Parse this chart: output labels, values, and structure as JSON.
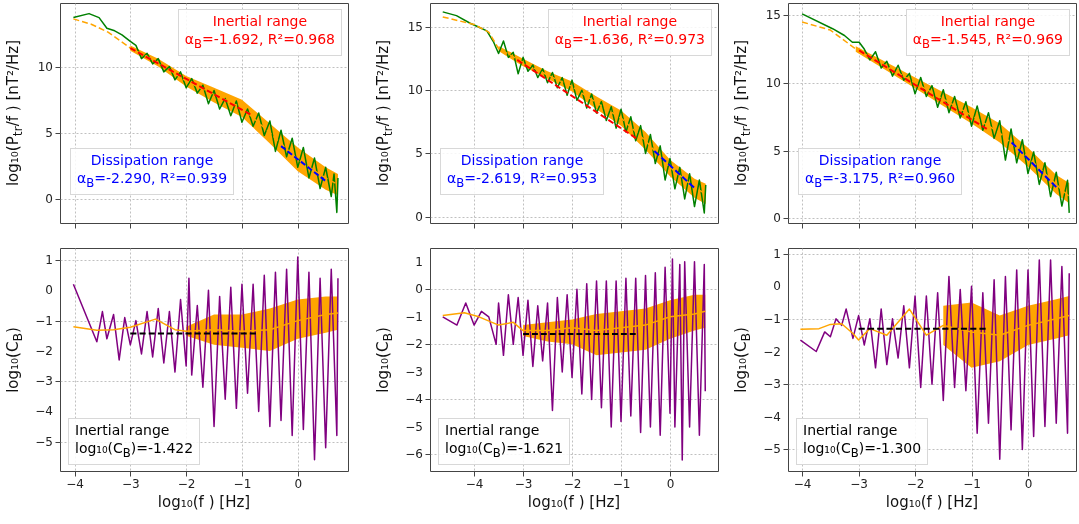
{
  "chart_data": [
    {
      "type": "line",
      "ylabel": "log₁₀(P$_{tr}$/f ) [nT²/Hz]",
      "xlim": [
        -4.26,
        0.9
      ],
      "ylim": [
        -1.8,
        14.8
      ],
      "xticks": [
        -4,
        -3,
        -2,
        -1,
        0
      ],
      "yticks": [
        0,
        5,
        10
      ],
      "tick_labels": "y",
      "grid": true,
      "marker": "none",
      "annotations": [
        "Inertial range",
        "α$_{B}$=-1.692, R²=0.968",
        "Dissipation range",
        "α$_{B}$=-2.290, R²=0.939"
      ],
      "series": [
        {
          "color": "#008000",
          "line_style": "solid",
          "x": [
            -4.02,
            -3.74,
            -3.56,
            -3.42,
            -3.28,
            -3.15,
            -3.0,
            -2.9,
            -2.8,
            -2.7,
            -2.6,
            -2.5,
            -2.4,
            -2.3,
            -2.2,
            -2.1,
            -2.0,
            -1.9,
            -1.8,
            -1.7,
            -1.6,
            -1.5,
            -1.4,
            -1.3,
            -1.2,
            -1.1,
            -1.0,
            -0.9,
            -0.8,
            -0.7,
            -0.6,
            -0.5,
            -0.4,
            -0.3,
            -0.2,
            -0.1,
            0.0,
            0.1,
            0.2,
            0.3,
            0.4,
            0.5,
            0.6,
            0.65,
            0.7,
            0.72
          ],
          "values": [
            13.7,
            14.0,
            13.7,
            12.9,
            12.7,
            12.4,
            11.9,
            11.6,
            10.6,
            11.0,
            10.2,
            10.6,
            9.6,
            10.0,
            9.0,
            9.6,
            8.4,
            9.1,
            8.0,
            8.6,
            7.2,
            8.2,
            6.8,
            7.6,
            6.3,
            7.4,
            5.8,
            6.8,
            5.5,
            6.5,
            4.8,
            5.9,
            3.6,
            5.2,
            3.2,
            4.6,
            2.4,
            3.9,
            1.6,
            3.1,
            0.8,
            2.4,
            0.2,
            1.9,
            -1.0,
            1.6
          ]
        },
        {
          "color": "#ffa500",
          "line_style": "dashed",
          "x": [
            -4.02,
            -3.7,
            -3.4,
            -3.0,
            -2.5,
            -2.0,
            -1.5,
            -1.0,
            -0.5,
            0.0,
            0.5,
            0.72
          ],
          "values": [
            13.6,
            13.2,
            12.6,
            11.4,
            10.3,
            8.9,
            7.9,
            6.9,
            5.0,
            3.0,
            1.6,
            1.1
          ],
          "lower": [
            null,
            null,
            null,
            11.2,
            10.0,
            8.5,
            7.3,
            6.2,
            4.2,
            2.1,
            0.7,
            0.3
          ],
          "upper": [
            null,
            null,
            null,
            11.6,
            10.6,
            9.3,
            8.4,
            7.5,
            5.7,
            3.9,
            2.4,
            1.9
          ]
        },
        {
          "color": "#ff0000",
          "line_style": "dashed",
          "x": [
            -3.0,
            -0.85
          ],
          "values": [
            11.4,
            6.4
          ]
        },
        {
          "color": "#0000ff",
          "line_style": "dashed",
          "x": [
            -0.3,
            0.49
          ],
          "values": [
            4.0,
            1.4
          ]
        }
      ]
    },
    {
      "type": "line",
      "ylabel": "log₁₀(P$_{tr}$/f ) [nT²/Hz]",
      "xlim": [
        -4.9,
        0.98
      ],
      "ylim": [
        -0.5,
        16.9
      ],
      "xticks": [
        -4,
        -3,
        -2,
        -1,
        0
      ],
      "yticks": [
        0,
        5,
        10,
        15
      ],
      "tick_labels": "y",
      "grid": true,
      "marker": "none",
      "annotations": [
        "Inertial range",
        "α$_{B}$=-1.636, R²=0.973",
        "Dissipation range",
        "α$_{B}$=-2.619, R²=0.953"
      ],
      "series": [
        {
          "color": "#008000",
          "line_style": "solid",
          "x": [
            -4.64,
            -4.36,
            -4.08,
            -3.91,
            -3.74,
            -3.6,
            -3.5,
            -3.4,
            -3.3,
            -3.2,
            -3.1,
            -3.0,
            -2.9,
            -2.8,
            -2.7,
            -2.6,
            -2.5,
            -2.4,
            -2.3,
            -2.2,
            -2.1,
            -2.0,
            -1.9,
            -1.8,
            -1.7,
            -1.6,
            -1.5,
            -1.4,
            -1.3,
            -1.2,
            -1.1,
            -1.0,
            -0.9,
            -0.8,
            -0.7,
            -0.6,
            -0.5,
            -0.4,
            -0.3,
            -0.2,
            -0.1,
            0.0,
            0.1,
            0.2,
            0.3,
            0.4,
            0.5,
            0.6,
            0.7,
            0.73
          ],
          "values": [
            16.2,
            15.9,
            15.3,
            15.0,
            14.7,
            13.8,
            12.9,
            13.9,
            12.6,
            13.0,
            11.3,
            12.6,
            11.5,
            12.0,
            11.0,
            11.7,
            10.6,
            11.4,
            10.2,
            11.0,
            9.6,
            10.8,
            9.2,
            10.0,
            8.6,
            9.7,
            8.2,
            9.1,
            7.6,
            8.7,
            7.0,
            8.5,
            6.7,
            7.9,
            6.0,
            7.2,
            5.0,
            6.5,
            4.2,
            5.6,
            2.9,
            4.6,
            2.2,
            3.9,
            1.4,
            3.4,
            0.8,
            2.9,
            0.3,
            2.5
          ]
        },
        {
          "color": "#ffa500",
          "line_style": "dashed",
          "x": [
            -4.64,
            -4.0,
            -3.7,
            -3.5,
            -3.0,
            -2.5,
            -2.0,
            -1.5,
            -1.0,
            -0.5,
            0.0,
            0.5,
            0.73
          ],
          "values": [
            15.8,
            15.2,
            14.6,
            13.3,
            12.2,
            11.2,
            10.3,
            9.0,
            7.8,
            6.0,
            3.9,
            2.3,
            1.8
          ],
          "lower": [
            null,
            null,
            null,
            13.1,
            11.9,
            10.9,
            9.9,
            8.5,
            7.2,
            5.3,
            3.2,
            1.5,
            1.0
          ],
          "upper": [
            null,
            null,
            null,
            13.5,
            12.5,
            11.5,
            10.7,
            9.5,
            8.4,
            6.7,
            4.5,
            3.0,
            2.6
          ]
        },
        {
          "color": "#ff0000",
          "line_style": "dashed",
          "x": [
            -3.12,
            -0.69
          ],
          "values": [
            12.4,
            6.2
          ]
        },
        {
          "color": "#0000ff",
          "line_style": "dashed",
          "x": [
            -0.32,
            0.49
          ],
          "values": [
            5.2,
            2.3
          ]
        }
      ]
    },
    {
      "type": "line",
      "ylabel": "log₁₀(P$_{tr}$/f ) [nT²/Hz]",
      "xlim": [
        -4.25,
        0.85
      ],
      "ylim": [
        -0.35,
        15.9
      ],
      "xticks": [
        -4,
        -3,
        -2,
        -1,
        0
      ],
      "yticks": [
        0,
        5,
        10,
        15
      ],
      "tick_labels": "y",
      "grid": true,
      "marker": "none",
      "annotations": [
        "Inertial range",
        "α$_{B}$=-1.545, R²=0.969",
        "Dissipation range",
        "α$_{B}$=-3.175, R²=0.960"
      ],
      "series": [
        {
          "color": "#008000",
          "line_style": "solid",
          "x": [
            -4.0,
            -3.46,
            -3.25,
            -3.11,
            -2.99,
            -2.9,
            -2.8,
            -2.7,
            -2.6,
            -2.5,
            -2.4,
            -2.3,
            -2.2,
            -2.1,
            -2.0,
            -1.9,
            -1.8,
            -1.7,
            -1.6,
            -1.5,
            -1.4,
            -1.3,
            -1.2,
            -1.1,
            -1.0,
            -0.9,
            -0.8,
            -0.7,
            -0.6,
            -0.5,
            -0.4,
            -0.3,
            -0.2,
            -0.1,
            0.0,
            0.1,
            0.2,
            0.3,
            0.4,
            0.5,
            0.6,
            0.7,
            0.73
          ],
          "values": [
            15.1,
            14.0,
            13.5,
            13.0,
            13.0,
            12.5,
            11.7,
            12.3,
            11.1,
            11.6,
            10.5,
            11.3,
            10.2,
            10.7,
            9.2,
            10.4,
            9.0,
            9.8,
            8.2,
            9.5,
            7.8,
            9.0,
            7.4,
            8.6,
            6.8,
            8.3,
            6.5,
            7.8,
            5.9,
            7.2,
            4.3,
            6.6,
            4.1,
            5.8,
            3.3,
            4.9,
            2.5,
            4.1,
            1.6,
            3.4,
            0.9,
            2.8,
            0.4
          ]
        },
        {
          "color": "#ffa500",
          "line_style": "dashed",
          "x": [
            -4.0,
            -3.5,
            -3.05,
            -2.5,
            -2.0,
            -1.5,
            -1.0,
            -0.5,
            0.0,
            0.5,
            0.73
          ],
          "values": [
            14.5,
            13.9,
            12.5,
            11.2,
            10.0,
            8.8,
            7.6,
            6.3,
            4.5,
            2.5,
            1.6
          ],
          "lower": [
            null,
            null,
            12.3,
            10.9,
            9.6,
            8.3,
            7.0,
            5.6,
            3.8,
            1.8,
            1.1
          ],
          "upper": [
            null,
            null,
            12.7,
            11.5,
            10.4,
            9.3,
            8.2,
            7.0,
            5.2,
            3.2,
            2.6
          ]
        },
        {
          "color": "#ff0000",
          "line_style": "dashed",
          "x": [
            -2.99,
            -0.73
          ],
          "values": [
            12.4,
            6.6
          ]
        },
        {
          "color": "#0000ff",
          "line_style": "dashed",
          "x": [
            -0.29,
            0.5
          ],
          "values": [
            5.6,
            2.3
          ]
        }
      ]
    },
    {
      "type": "line",
      "xlabel": "log₁₀(f ) [Hz]",
      "ylabel": "log₁₀(C$_{B}$)",
      "xlim": [
        -4.26,
        0.9
      ],
      "ylim": [
        -5.97,
        1.4
      ],
      "xticks": [
        -4,
        -3,
        -2,
        -1,
        0
      ],
      "yticks": [
        -5,
        -4,
        -3,
        -2,
        -1,
        0,
        1
      ],
      "grid": true,
      "marker": "none",
      "annotations": [
        "Inertial range",
        "log₁₀(C$_{B}$)=-1.422"
      ],
      "series": [
        {
          "color": "#800080",
          "line_style": "solid",
          "x": [
            -4.02,
            -3.6,
            -3.5,
            -3.42,
            -3.3,
            -3.2,
            -3.1,
            -3.0,
            -2.9,
            -2.8,
            -2.7,
            -2.6,
            -2.5,
            -2.4,
            -2.3,
            -2.2,
            -2.1,
            -2.0,
            -1.95,
            -1.9,
            -1.8,
            -1.7,
            -1.6,
            -1.5,
            -1.4,
            -1.3,
            -1.2,
            -1.1,
            -1.0,
            -0.9,
            -0.8,
            -0.7,
            -0.6,
            -0.5,
            -0.4,
            -0.3,
            -0.2,
            -0.1,
            0.0,
            0.1,
            0.2,
            0.3,
            0.4,
            0.5,
            0.6,
            0.7,
            0.72
          ],
          "values": [
            0.2,
            -1.7,
            -0.7,
            -1.6,
            -0.8,
            -2.3,
            -0.9,
            -1.8,
            -1.0,
            -2.1,
            -0.7,
            -2.2,
            -0.6,
            -2.4,
            -0.7,
            -2.7,
            -0.3,
            -2.5,
            0.4,
            -2.8,
            -0.5,
            -3.2,
            0.0,
            -4.5,
            -0.2,
            -3.6,
            0.1,
            -3.9,
            0.2,
            -3.4,
            0.2,
            -4.0,
            0.5,
            -4.5,
            0.6,
            -4.3,
            0.7,
            -4.8,
            1.1,
            -4.6,
            0.6,
            -5.6,
            0.4,
            -5.2,
            0.7,
            -4.8,
            0.4
          ]
        },
        {
          "color": "#ffa500",
          "line_style": "solid",
          "x": [
            -4.02,
            -3.6,
            -3.3,
            -3.0,
            -2.55,
            -2.2,
            -2.0,
            -1.5,
            -1.0,
            -0.5,
            0.0,
            0.5,
            0.72
          ],
          "values": [
            -1.2,
            -1.32,
            -1.3,
            -1.22,
            -0.95,
            -1.3,
            -1.35,
            -1.3,
            -1.35,
            -1.3,
            -1.0,
            -0.8,
            -0.75
          ],
          "lower": [
            null,
            null,
            null,
            null,
            null,
            null,
            -1.5,
            -1.8,
            -1.9,
            -2.0,
            -1.6,
            -1.4,
            -1.3
          ],
          "upper": [
            null,
            null,
            null,
            null,
            null,
            null,
            -1.2,
            -0.8,
            -0.8,
            -0.6,
            -0.3,
            -0.2,
            -0.2
          ]
        },
        {
          "color": "#000000",
          "line_style": "dashed",
          "x": [
            -3.0,
            -0.75
          ],
          "values": [
            -1.422,
            -1.422
          ]
        }
      ]
    },
    {
      "type": "line",
      "xlabel": "log₁₀(f ) [Hz]",
      "ylabel": "log₁₀(C$_{B}$)",
      "xlim": [
        -4.9,
        0.98
      ],
      "ylim": [
        -6.6,
        1.5
      ],
      "xticks": [
        -4,
        -3,
        -2,
        -1,
        0
      ],
      "yticks": [
        -6,
        -5,
        -4,
        -3,
        -2,
        -1,
        0,
        1
      ],
      "grid": true,
      "marker": "none",
      "annotations": [
        "Inertial range",
        "log₁₀(C$_{B}$)=-1.621"
      ],
      "series": [
        {
          "color": "#800080",
          "line_style": "solid",
          "x": [
            -4.64,
            -4.35,
            -4.17,
            -4.0,
            -3.85,
            -3.7,
            -3.55,
            -3.5,
            -3.4,
            -3.3,
            -3.2,
            -3.1,
            -3.0,
            -2.9,
            -2.8,
            -2.7,
            -2.6,
            -2.5,
            -2.4,
            -2.3,
            -2.2,
            -2.1,
            -2.0,
            -1.9,
            -1.8,
            -1.7,
            -1.6,
            -1.5,
            -1.4,
            -1.3,
            -1.2,
            -1.1,
            -1.0,
            -0.9,
            -0.8,
            -0.7,
            -0.6,
            -0.5,
            -0.4,
            -0.3,
            -0.2,
            -0.1,
            0.0,
            0.05,
            0.1,
            0.2,
            0.25,
            0.3,
            0.4,
            0.5,
            0.6,
            0.7,
            0.72
          ],
          "values": [
            -1.0,
            -1.3,
            -0.5,
            -1.3,
            -0.8,
            -1.0,
            -2.0,
            -0.5,
            -2.4,
            -0.2,
            -2.0,
            -0.3,
            -2.4,
            -0.4,
            -2.8,
            -0.6,
            -2.6,
            -0.5,
            -4.4,
            -0.3,
            -3.0,
            -0.2,
            -3.2,
            0.0,
            -3.8,
            0.2,
            -4.0,
            0.3,
            -4.3,
            0.3,
            -5.0,
            0.3,
            -4.8,
            0.4,
            -4.6,
            0.4,
            -5.2,
            0.5,
            -5.0,
            0.6,
            -5.3,
            0.8,
            -4.5,
            1.1,
            -5.0,
            0.9,
            -6.2,
            1.0,
            -5.0,
            1.0,
            -5.3,
            0.9,
            -3.7
          ]
        },
        {
          "color": "#ffa500",
          "line_style": "solid",
          "x": [
            -4.64,
            -4.2,
            -3.9,
            -3.5,
            -3.2,
            -3.0,
            -2.5,
            -2.0,
            -1.5,
            -1.0,
            -0.5,
            0.0,
            0.5,
            0.72
          ],
          "values": [
            -0.95,
            -0.85,
            -1.0,
            -1.3,
            -1.2,
            -1.5,
            -1.5,
            -1.4,
            -1.5,
            -1.4,
            -1.3,
            -1.0,
            -0.9,
            -0.8
          ],
          "lower": [
            null,
            null,
            null,
            null,
            null,
            -1.7,
            -1.9,
            -2.0,
            -2.4,
            -2.3,
            -2.2,
            -1.8,
            -1.5,
            -1.4
          ],
          "upper": [
            null,
            null,
            null,
            null,
            null,
            -1.3,
            -1.2,
            -1.1,
            -0.9,
            -0.8,
            -0.7,
            -0.4,
            -0.2,
            -0.2
          ]
        },
        {
          "color": "#000000",
          "line_style": "dashed",
          "x": [
            -3.0,
            -0.7
          ],
          "values": [
            -1.621,
            -1.621
          ]
        }
      ]
    },
    {
      "type": "line",
      "xlabel": "log₁₀(f ) [Hz]",
      "ylabel": "log₁₀(C$_{B}$)",
      "xlim": [
        -4.25,
        0.85
      ],
      "ylim": [
        -5.66,
        1.17
      ],
      "xticks": [
        -4,
        -3,
        -2,
        -1,
        0
      ],
      "yticks": [
        -5,
        -4,
        -3,
        -2,
        -1,
        0,
        1
      ],
      "grid": true,
      "marker": "none",
      "annotations": [
        "Inertial range",
        "log₁₀(C$_{B}$)=-1.300"
      ],
      "series": [
        {
          "color": "#800080",
          "line_style": "solid",
          "x": [
            -4.03,
            -3.75,
            -3.6,
            -3.5,
            -3.4,
            -3.3,
            -3.22,
            -3.1,
            -3.0,
            -2.9,
            -2.8,
            -2.7,
            -2.6,
            -2.5,
            -2.4,
            -2.3,
            -2.2,
            -2.1,
            -2.0,
            -1.9,
            -1.8,
            -1.7,
            -1.6,
            -1.5,
            -1.4,
            -1.3,
            -1.2,
            -1.1,
            -1.0,
            -0.9,
            -0.8,
            -0.7,
            -0.6,
            -0.5,
            -0.4,
            -0.3,
            -0.2,
            -0.1,
            0.0,
            0.1,
            0.2,
            0.3,
            0.4,
            0.5,
            0.6,
            0.7,
            0.73
          ],
          "values": [
            -1.65,
            -2.0,
            -1.4,
            -1.55,
            -1.0,
            -1.2,
            -0.7,
            -1.6,
            -0.9,
            -1.8,
            -1.0,
            -2.5,
            -0.7,
            -2.4,
            -1.0,
            -2.2,
            -0.6,
            -2.5,
            -0.3,
            -3.1,
            -0.3,
            -3.0,
            -0.2,
            -3.5,
            0.3,
            -3.1,
            -0.1,
            -3.2,
            0.0,
            -4.5,
            -0.2,
            -4.2,
            0.2,
            -5.3,
            0.3,
            -4.4,
            0.5,
            -5.0,
            0.5,
            -4.6,
            0.8,
            -4.3,
            0.8,
            -4.2,
            0.6,
            -4.5,
            0.4
          ]
        },
        {
          "color": "#ffa500",
          "line_style": "solid",
          "x": [
            -4.03,
            -3.7,
            -3.5,
            -3.3,
            -3.1,
            -3.0,
            -2.8,
            -2.5,
            -2.1,
            -1.8,
            -1.5,
            -1.0,
            -0.5,
            0.0,
            0.5,
            0.73
          ],
          "values": [
            -1.32,
            -1.3,
            -1.17,
            -1.15,
            -1.45,
            -1.65,
            -1.3,
            -1.5,
            -0.7,
            -1.5,
            -1.2,
            -1.4,
            -1.5,
            -1.2,
            -1.0,
            -0.9
          ],
          "lower": [
            null,
            null,
            null,
            null,
            null,
            null,
            null,
            null,
            null,
            null,
            -1.8,
            -2.5,
            -2.3,
            -1.8,
            -1.6,
            -1.5
          ],
          "upper": [
            null,
            null,
            null,
            null,
            null,
            null,
            null,
            null,
            null,
            null,
            -0.6,
            -0.5,
            -0.9,
            -0.6,
            -0.4,
            -0.3
          ]
        },
        {
          "color": "#000000",
          "line_style": "dashed",
          "x": [
            -3.0,
            -0.75
          ],
          "values": [
            -1.3,
            -1.3
          ]
        }
      ]
    }
  ]
}
